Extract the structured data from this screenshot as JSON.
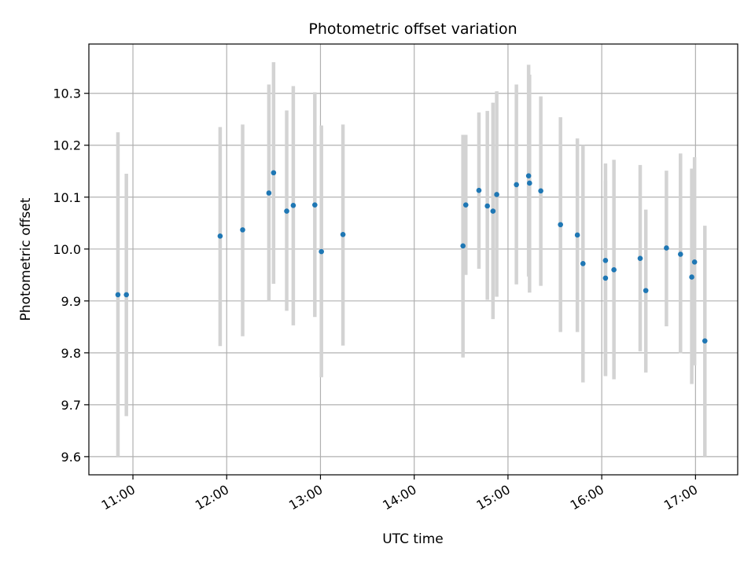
{
  "chart_data": {
    "type": "scatter",
    "title": "Photometric offset variation",
    "xlabel": "UTC time",
    "ylabel": "Photometric offset",
    "x_unit": "hours UTC",
    "xlim": [
      10.53,
      17.45
    ],
    "ylim": [
      9.565,
      10.395
    ],
    "x_ticks": [
      {
        "value": 11,
        "label": "11:00"
      },
      {
        "value": 12,
        "label": "12:00"
      },
      {
        "value": 13,
        "label": "13:00"
      },
      {
        "value": 14,
        "label": "14:00"
      },
      {
        "value": 15,
        "label": "15:00"
      },
      {
        "value": 16,
        "label": "16:00"
      },
      {
        "value": 17,
        "label": "17:00"
      }
    ],
    "y_ticks": [
      {
        "value": 9.6,
        "label": "9.6"
      },
      {
        "value": 9.7,
        "label": "9.7"
      },
      {
        "value": 9.8,
        "label": "9.8"
      },
      {
        "value": 9.9,
        "label": "9.9"
      },
      {
        "value": 10.0,
        "label": "10.0"
      },
      {
        "value": 10.1,
        "label": "10.1"
      },
      {
        "value": 10.2,
        "label": "10.2"
      },
      {
        "value": 10.3,
        "label": "10.3"
      }
    ],
    "grid": true,
    "marker_color": "#1f77b4",
    "errorbar_color": "#d3d3d3",
    "points": [
      {
        "x": 10.84,
        "y": 9.912,
        "ylo": 9.6,
        "yhi": 10.225
      },
      {
        "x": 10.93,
        "y": 9.912,
        "ylo": 9.678,
        "yhi": 10.145
      },
      {
        "x": 11.93,
        "y": 10.025,
        "ylo": 9.813,
        "yhi": 10.235
      },
      {
        "x": 12.17,
        "y": 10.037,
        "ylo": 9.832,
        "yhi": 10.24
      },
      {
        "x": 12.45,
        "y": 10.108,
        "ylo": 9.9,
        "yhi": 10.317
      },
      {
        "x": 12.5,
        "y": 10.147,
        "ylo": 9.933,
        "yhi": 10.36
      },
      {
        "x": 12.64,
        "y": 10.073,
        "ylo": 9.881,
        "yhi": 10.267
      },
      {
        "x": 12.71,
        "y": 10.084,
        "ylo": 9.853,
        "yhi": 10.314
      },
      {
        "x": 12.94,
        "y": 10.085,
        "ylo": 9.869,
        "yhi": 10.302
      },
      {
        "x": 13.01,
        "y": 9.995,
        "ylo": 9.753,
        "yhi": 10.238
      },
      {
        "x": 13.24,
        "y": 10.028,
        "ylo": 9.814,
        "yhi": 10.24
      },
      {
        "x": 14.52,
        "y": 10.006,
        "ylo": 9.791,
        "yhi": 10.22
      },
      {
        "x": 14.55,
        "y": 10.085,
        "ylo": 9.95,
        "yhi": 10.22
      },
      {
        "x": 14.69,
        "y": 10.113,
        "ylo": 9.962,
        "yhi": 10.263
      },
      {
        "x": 14.78,
        "y": 10.083,
        "ylo": 9.902,
        "yhi": 10.266
      },
      {
        "x": 14.84,
        "y": 10.073,
        "ylo": 9.865,
        "yhi": 10.282
      },
      {
        "x": 14.88,
        "y": 10.105,
        "ylo": 9.908,
        "yhi": 10.304
      },
      {
        "x": 15.09,
        "y": 10.124,
        "ylo": 9.932,
        "yhi": 10.317
      },
      {
        "x": 15.22,
        "y": 10.141,
        "ylo": 9.947,
        "yhi": 10.355
      },
      {
        "x": 15.23,
        "y": 10.127,
        "ylo": 9.916,
        "yhi": 10.336
      },
      {
        "x": 15.35,
        "y": 10.112,
        "ylo": 9.929,
        "yhi": 10.294
      },
      {
        "x": 15.56,
        "y": 10.047,
        "ylo": 9.84,
        "yhi": 10.254
      },
      {
        "x": 15.74,
        "y": 10.027,
        "ylo": 9.84,
        "yhi": 10.213
      },
      {
        "x": 15.8,
        "y": 9.972,
        "ylo": 9.743,
        "yhi": 10.2
      },
      {
        "x": 16.04,
        "y": 9.978,
        "ylo": 9.755,
        "yhi": 10.165
      },
      {
        "x": 16.04,
        "y": 9.944,
        "ylo": 9.755,
        "yhi": 10.132
      },
      {
        "x": 16.13,
        "y": 9.96,
        "ylo": 9.749,
        "yhi": 10.172
      },
      {
        "x": 16.41,
        "y": 9.982,
        "ylo": 9.803,
        "yhi": 10.162
      },
      {
        "x": 16.47,
        "y": 9.92,
        "ylo": 9.762,
        "yhi": 10.076
      },
      {
        "x": 16.69,
        "y": 10.002,
        "ylo": 9.851,
        "yhi": 10.151
      },
      {
        "x": 16.84,
        "y": 9.99,
        "ylo": 9.799,
        "yhi": 10.184
      },
      {
        "x": 16.96,
        "y": 9.946,
        "ylo": 9.74,
        "yhi": 10.155
      },
      {
        "x": 16.99,
        "y": 9.975,
        "ylo": 9.776,
        "yhi": 10.177
      },
      {
        "x": 17.1,
        "y": 9.823,
        "ylo": 9.6,
        "yhi": 10.045
      }
    ]
  }
}
